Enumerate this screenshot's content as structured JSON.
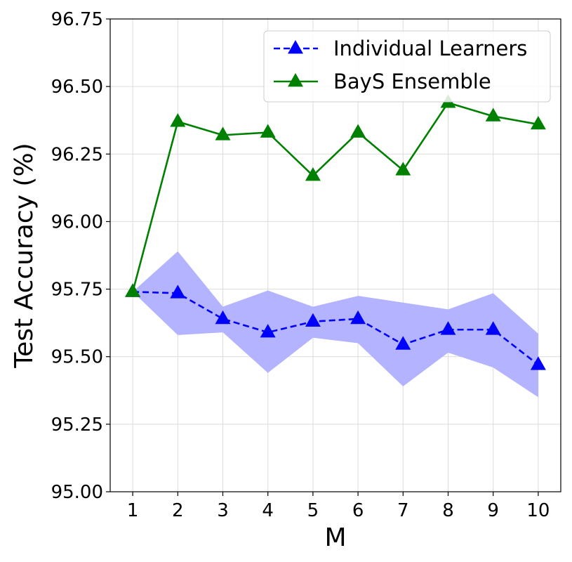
{
  "chart_data": {
    "type": "line",
    "xlabel": "M",
    "ylabel": "Test Accuracy (%)",
    "x": [
      1,
      2,
      3,
      4,
      5,
      6,
      7,
      8,
      9,
      10
    ],
    "xticks": [
      "1",
      "2",
      "3",
      "4",
      "5",
      "6",
      "7",
      "8",
      "9",
      "10"
    ],
    "ylim": [
      95.0,
      96.75
    ],
    "yticks": [
      "95.00",
      "95.25",
      "95.50",
      "95.75",
      "96.00",
      "96.25",
      "96.50",
      "96.75"
    ],
    "grid": true,
    "legend_position": "top-right",
    "series": [
      {
        "name": "Individual Learners",
        "color": "#0000ff",
        "line_style": "dashed",
        "marker": "triangle-up",
        "values": [
          95.74,
          95.735,
          95.64,
          95.59,
          95.63,
          95.64,
          95.545,
          95.6,
          95.6,
          95.47
        ],
        "band_lower": [
          95.74,
          95.58,
          95.59,
          95.44,
          95.57,
          95.55,
          95.39,
          95.515,
          95.46,
          95.35
        ],
        "band_upper": [
          95.74,
          95.89,
          95.685,
          95.745,
          95.685,
          95.725,
          95.7,
          95.675,
          95.735,
          95.585
        ],
        "band_color": "#b3b3ff"
      },
      {
        "name": "BayS Ensemble",
        "color": "#008000",
        "line_style": "solid",
        "marker": "triangle-up",
        "values": [
          95.74,
          96.37,
          96.32,
          96.33,
          96.17,
          96.33,
          96.19,
          96.44,
          96.39,
          96.36
        ]
      }
    ]
  }
}
